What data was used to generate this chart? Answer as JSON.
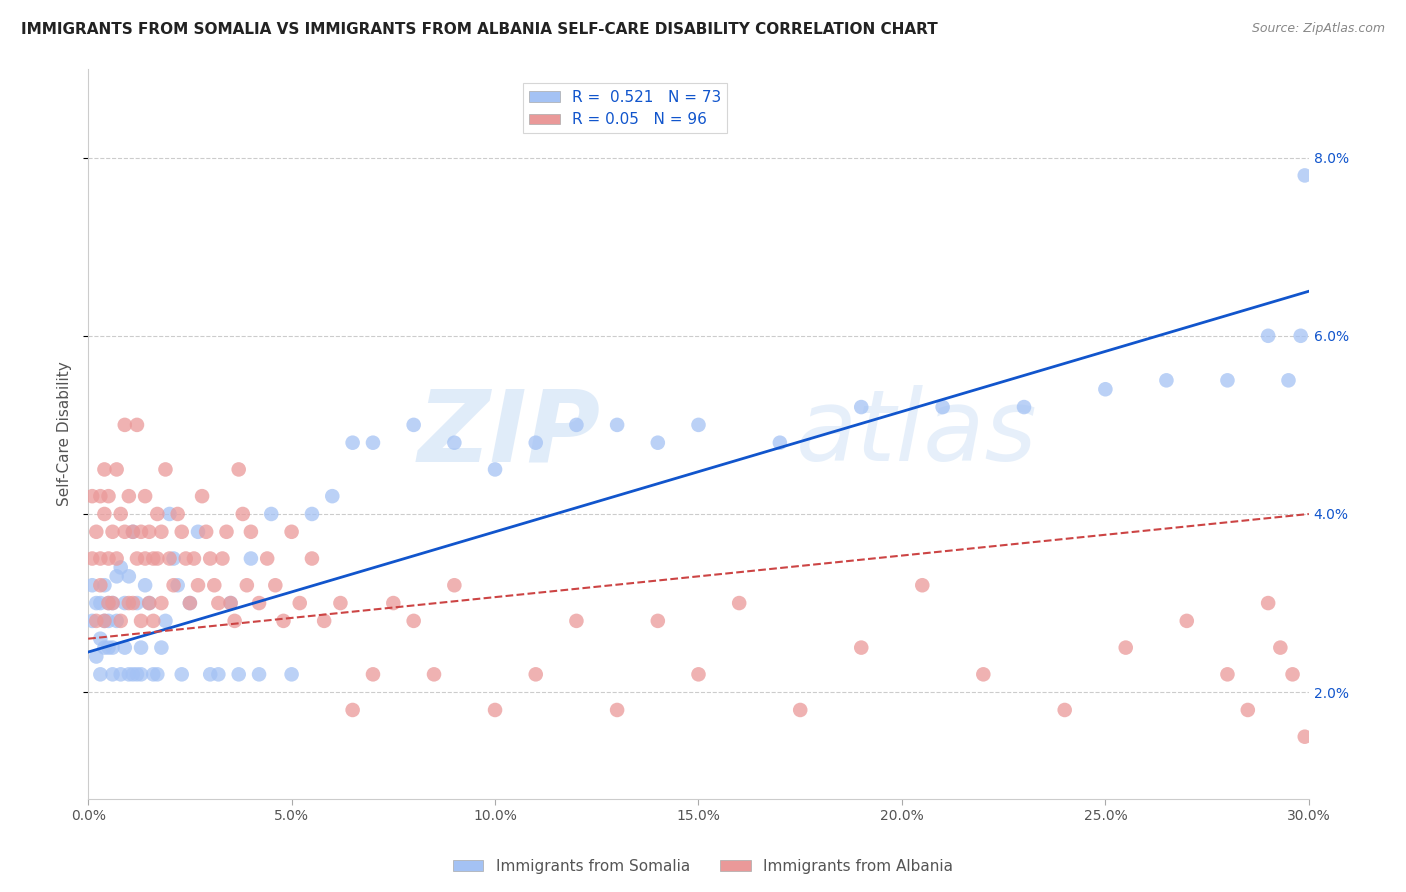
{
  "title": "IMMIGRANTS FROM SOMALIA VS IMMIGRANTS FROM ALBANIA SELF-CARE DISABILITY CORRELATION CHART",
  "source": "Source: ZipAtlas.com",
  "ylabel": "Self-Care Disability",
  "xlim": [
    0.0,
    0.3
  ],
  "ylim": [
    0.008,
    0.09
  ],
  "xticks": [
    0.0,
    0.05,
    0.1,
    0.15,
    0.2,
    0.25,
    0.3
  ],
  "yticks": [
    0.02,
    0.04,
    0.06,
    0.08
  ],
  "ytick_labels": [
    "2.0%",
    "4.0%",
    "6.0%",
    "8.0%"
  ],
  "xtick_labels": [
    "0.0%",
    "5.0%",
    "10.0%",
    "15.0%",
    "20.0%",
    "25.0%",
    "30.0%"
  ],
  "somalia_color": "#a4c2f4",
  "albania_color": "#ea9999",
  "somalia_R": 0.521,
  "somalia_N": 73,
  "albania_R": 0.05,
  "albania_N": 96,
  "legend_label_somalia": "Immigrants from Somalia",
  "legend_label_albania": "Immigrants from Albania",
  "watermark_zip": "ZIP",
  "watermark_atlas": "atlas",
  "background_color": "#ffffff",
  "grid_color": "#cccccc",
  "somalia_line_color": "#1155cc",
  "albania_line_color": "#cc4444",
  "title_fontsize": 11,
  "axis_label_fontsize": 11,
  "tick_fontsize": 10,
  "legend_fontsize": 11,
  "somalia_trend_x0": 0.0,
  "somalia_trend_y0": 0.0245,
  "somalia_trend_x1": 0.3,
  "somalia_trend_y1": 0.065,
  "albania_trend_x0": 0.0,
  "albania_trend_y0": 0.026,
  "albania_trend_x1": 0.3,
  "albania_trend_y1": 0.04,
  "somalia_x": [
    0.001,
    0.001,
    0.002,
    0.002,
    0.003,
    0.003,
    0.003,
    0.004,
    0.004,
    0.004,
    0.005,
    0.005,
    0.005,
    0.006,
    0.006,
    0.006,
    0.007,
    0.007,
    0.008,
    0.008,
    0.009,
    0.009,
    0.01,
    0.01,
    0.011,
    0.011,
    0.012,
    0.012,
    0.013,
    0.013,
    0.014,
    0.015,
    0.016,
    0.017,
    0.018,
    0.019,
    0.02,
    0.021,
    0.022,
    0.023,
    0.025,
    0.027,
    0.03,
    0.032,
    0.035,
    0.037,
    0.04,
    0.042,
    0.045,
    0.05,
    0.055,
    0.06,
    0.065,
    0.07,
    0.08,
    0.09,
    0.1,
    0.11,
    0.12,
    0.13,
    0.14,
    0.15,
    0.17,
    0.19,
    0.21,
    0.23,
    0.25,
    0.265,
    0.28,
    0.29,
    0.295,
    0.298,
    0.299
  ],
  "somalia_y": [
    0.028,
    0.032,
    0.024,
    0.03,
    0.026,
    0.03,
    0.022,
    0.028,
    0.032,
    0.025,
    0.028,
    0.025,
    0.03,
    0.03,
    0.025,
    0.022,
    0.033,
    0.028,
    0.034,
    0.022,
    0.03,
    0.025,
    0.033,
    0.022,
    0.038,
    0.022,
    0.03,
    0.022,
    0.025,
    0.022,
    0.032,
    0.03,
    0.022,
    0.022,
    0.025,
    0.028,
    0.04,
    0.035,
    0.032,
    0.022,
    0.03,
    0.038,
    0.022,
    0.022,
    0.03,
    0.022,
    0.035,
    0.022,
    0.04,
    0.022,
    0.04,
    0.042,
    0.048,
    0.048,
    0.05,
    0.048,
    0.045,
    0.048,
    0.05,
    0.05,
    0.048,
    0.05,
    0.048,
    0.052,
    0.052,
    0.052,
    0.054,
    0.055,
    0.055,
    0.06,
    0.055,
    0.06,
    0.078
  ],
  "albania_x": [
    0.001,
    0.001,
    0.002,
    0.002,
    0.003,
    0.003,
    0.003,
    0.004,
    0.004,
    0.004,
    0.005,
    0.005,
    0.005,
    0.006,
    0.006,
    0.007,
    0.007,
    0.008,
    0.008,
    0.009,
    0.009,
    0.01,
    0.01,
    0.011,
    0.011,
    0.012,
    0.012,
    0.013,
    0.013,
    0.014,
    0.014,
    0.015,
    0.015,
    0.016,
    0.016,
    0.017,
    0.017,
    0.018,
    0.018,
    0.019,
    0.02,
    0.021,
    0.022,
    0.023,
    0.024,
    0.025,
    0.026,
    0.027,
    0.028,
    0.029,
    0.03,
    0.031,
    0.032,
    0.033,
    0.034,
    0.035,
    0.036,
    0.037,
    0.038,
    0.039,
    0.04,
    0.042,
    0.044,
    0.046,
    0.048,
    0.05,
    0.052,
    0.055,
    0.058,
    0.062,
    0.065,
    0.07,
    0.075,
    0.08,
    0.085,
    0.09,
    0.1,
    0.11,
    0.12,
    0.13,
    0.14,
    0.15,
    0.16,
    0.175,
    0.19,
    0.205,
    0.22,
    0.24,
    0.255,
    0.27,
    0.28,
    0.285,
    0.29,
    0.293,
    0.296,
    0.299
  ],
  "albania_y": [
    0.035,
    0.042,
    0.028,
    0.038,
    0.032,
    0.042,
    0.035,
    0.04,
    0.028,
    0.045,
    0.03,
    0.042,
    0.035,
    0.038,
    0.03,
    0.045,
    0.035,
    0.04,
    0.028,
    0.05,
    0.038,
    0.042,
    0.03,
    0.038,
    0.03,
    0.05,
    0.035,
    0.038,
    0.028,
    0.042,
    0.035,
    0.038,
    0.03,
    0.035,
    0.028,
    0.04,
    0.035,
    0.03,
    0.038,
    0.045,
    0.035,
    0.032,
    0.04,
    0.038,
    0.035,
    0.03,
    0.035,
    0.032,
    0.042,
    0.038,
    0.035,
    0.032,
    0.03,
    0.035,
    0.038,
    0.03,
    0.028,
    0.045,
    0.04,
    0.032,
    0.038,
    0.03,
    0.035,
    0.032,
    0.028,
    0.038,
    0.03,
    0.035,
    0.028,
    0.03,
    0.018,
    0.022,
    0.03,
    0.028,
    0.022,
    0.032,
    0.018,
    0.022,
    0.028,
    0.018,
    0.028,
    0.022,
    0.03,
    0.018,
    0.025,
    0.032,
    0.022,
    0.018,
    0.025,
    0.028,
    0.022,
    0.018,
    0.03,
    0.025,
    0.022,
    0.015
  ]
}
